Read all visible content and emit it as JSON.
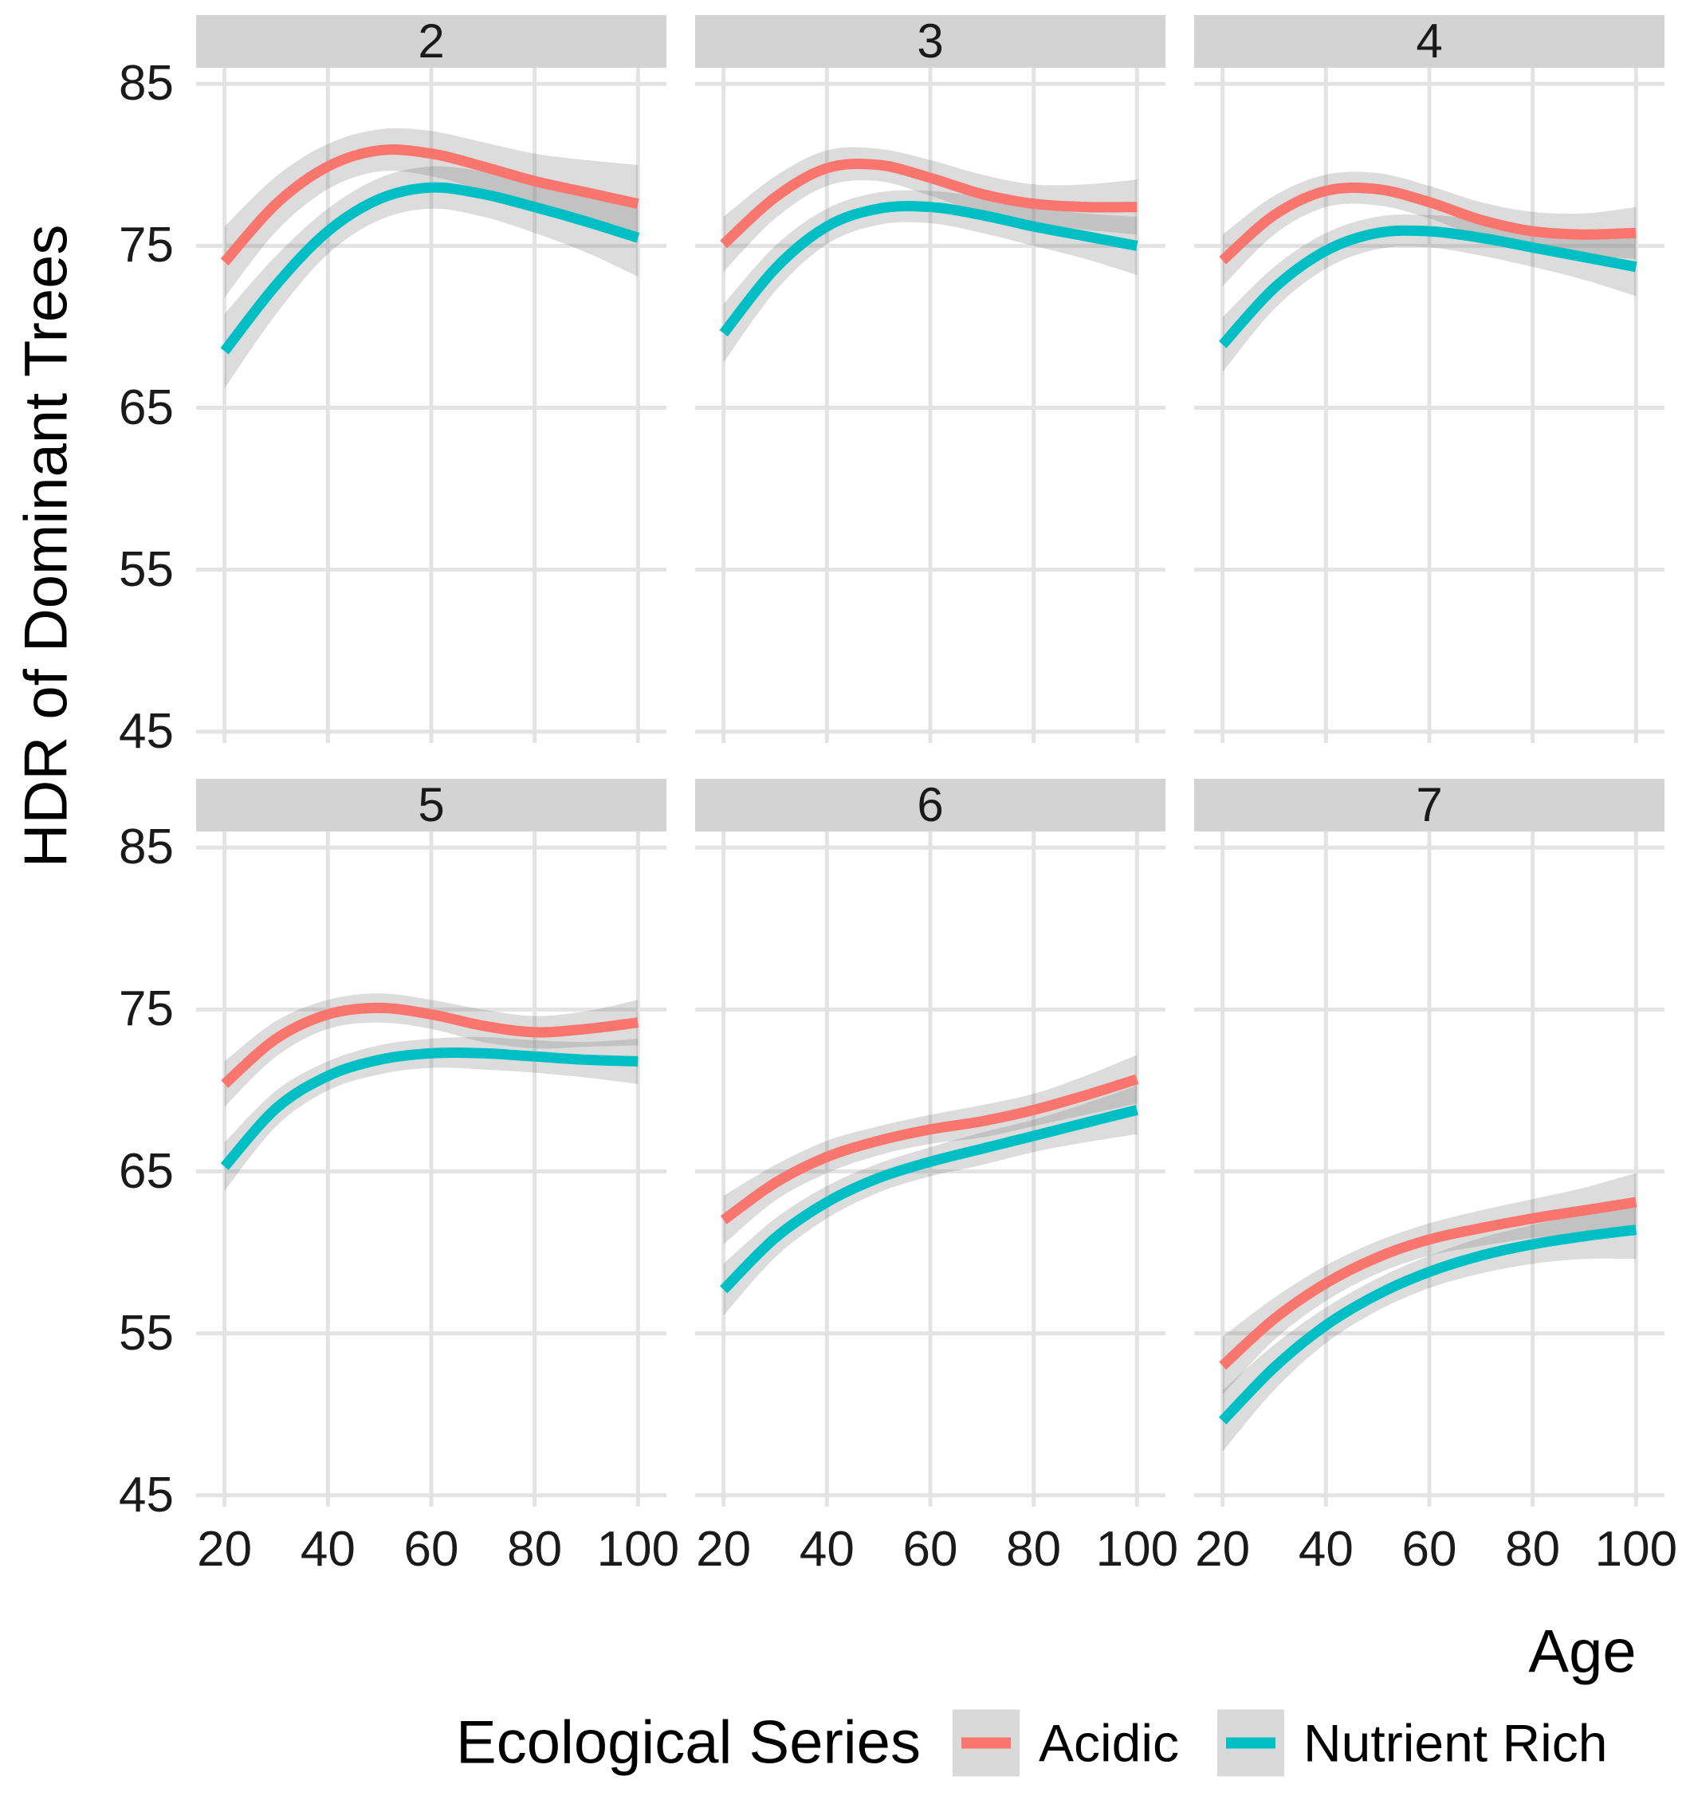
{
  "figure": {
    "background": "#ffffff"
  },
  "y_axis": {
    "title": "HDR of Dominant Trees",
    "ticks": [
      "85",
      "75",
      "65",
      "55",
      "45"
    ]
  },
  "x_axis": {
    "title": "Age",
    "ticks": [
      "20",
      "40",
      "60",
      "80",
      "100"
    ]
  },
  "legend": {
    "title": "Ecological Series",
    "items": [
      {
        "label": "Acidic",
        "color": "#F8766D"
      },
      {
        "label": "Nutrient Rich",
        "color": "#00BFC4"
      }
    ]
  },
  "colors": {
    "acidic": "#F8766D",
    "nutrient_rich": "#00BFC4",
    "strip_fill": "#D3D3D3",
    "legend_key_fill": "#D9D9D9",
    "gridline": "#E3E3E3",
    "ribbon": "rgba(127,127,127,0.27)",
    "text": "#1a1a1a"
  },
  "chart_data": {
    "type": "line",
    "title": "",
    "xlabel": "Age",
    "ylabel": "HDR of Dominant Trees",
    "x": [
      20,
      30,
      40,
      50,
      60,
      70,
      80,
      90,
      100
    ],
    "xticks": [
      20,
      40,
      60,
      80,
      100
    ],
    "yticks": [
      85,
      75,
      65,
      55,
      45
    ],
    "xlim": [
      14.5,
      105.5
    ],
    "ylim": [
      44.3,
      86.0
    ],
    "grid": true,
    "legend_position": "bottom",
    "ribbon": "confidence band (gray, half-widths in ci)",
    "facets": [
      {
        "label": "2",
        "series": [
          {
            "name": "Acidic",
            "values": [
              74.0,
              77.6,
              79.9,
              80.9,
              80.7,
              79.9,
              79.0,
              78.3,
              77.6
            ],
            "ci": [
              2.2,
              1.7,
              1.4,
              1.3,
              1.4,
              1.5,
              1.7,
              2.0,
              2.4
            ]
          },
          {
            "name": "Nutrient Rich",
            "values": [
              68.5,
              72.6,
              75.9,
              77.9,
              78.6,
              78.2,
              77.4,
              76.5,
              75.5
            ],
            "ci": [
              2.3,
              1.8,
              1.4,
              1.3,
              1.3,
              1.4,
              1.6,
              1.9,
              2.4
            ]
          }
        ]
      },
      {
        "label": "3",
        "series": [
          {
            "name": "Acidic",
            "values": [
              75.1,
              78.0,
              79.8,
              80.0,
              79.2,
              78.2,
              77.6,
              77.4,
              77.4
            ],
            "ci": [
              1.7,
              1.3,
              1.1,
              1.0,
              1.1,
              1.2,
              1.2,
              1.4,
              1.7
            ]
          },
          {
            "name": "Nutrient Rich",
            "values": [
              69.6,
              73.6,
              76.2,
              77.3,
              77.4,
              76.9,
              76.2,
              75.6,
              75.0
            ],
            "ci": [
              1.8,
              1.4,
              1.1,
              1.0,
              1.0,
              1.1,
              1.2,
              1.4,
              1.8
            ]
          }
        ]
      },
      {
        "label": "4",
        "series": [
          {
            "name": "Acidic",
            "values": [
              74.1,
              76.9,
              78.4,
              78.5,
              77.7,
              76.6,
              75.9,
              75.7,
              75.8
            ],
            "ci": [
              1.6,
              1.2,
              1.0,
              1.0,
              1.0,
              1.1,
              1.2,
              1.3,
              1.6
            ]
          },
          {
            "name": "Nutrient Rich",
            "values": [
              68.9,
              72.4,
              74.7,
              75.8,
              75.9,
              75.5,
              74.9,
              74.3,
              73.7
            ],
            "ci": [
              1.7,
              1.3,
              1.1,
              1.0,
              1.0,
              1.1,
              1.2,
              1.4,
              1.8
            ]
          }
        ]
      },
      {
        "label": "5",
        "series": [
          {
            "name": "Acidic",
            "values": [
              70.4,
              73.2,
              74.7,
              75.1,
              74.7,
              74.0,
              73.6,
              73.8,
              74.2
            ],
            "ci": [
              1.4,
              1.1,
              0.9,
              0.9,
              0.9,
              1.0,
              1.0,
              1.1,
              1.4
            ]
          },
          {
            "name": "Nutrient Rich",
            "values": [
              65.3,
              68.9,
              70.9,
              71.9,
              72.3,
              72.3,
              72.1,
              71.9,
              71.8
            ],
            "ci": [
              1.5,
              1.1,
              0.9,
              0.9,
              0.9,
              1.0,
              1.0,
              1.1,
              1.4
            ]
          }
        ]
      },
      {
        "label": "6",
        "series": [
          {
            "name": "Acidic",
            "values": [
              62.0,
              64.3,
              65.9,
              66.9,
              67.6,
              68.1,
              68.8,
              69.7,
              70.7
            ],
            "ci": [
              1.5,
              1.1,
              1.0,
              0.9,
              0.9,
              1.0,
              1.0,
              1.2,
              1.5
            ]
          },
          {
            "name": "Nutrient Rich",
            "values": [
              57.7,
              60.9,
              63.1,
              64.6,
              65.6,
              66.4,
              67.2,
              68.0,
              68.8
            ],
            "ci": [
              1.6,
              1.2,
              1.0,
              0.9,
              0.9,
              1.0,
              1.0,
              1.2,
              1.5
            ]
          }
        ]
      },
      {
        "label": "7",
        "series": [
          {
            "name": "Acidic",
            "values": [
              53.0,
              55.9,
              58.1,
              59.7,
              60.8,
              61.5,
              62.1,
              62.6,
              63.1
            ],
            "ci": [
              1.8,
              1.3,
              1.1,
              1.0,
              1.0,
              1.1,
              1.2,
              1.4,
              1.8
            ]
          },
          {
            "name": "Nutrient Rich",
            "values": [
              49.6,
              52.9,
              55.5,
              57.4,
              58.8,
              59.8,
              60.5,
              61.0,
              61.4
            ],
            "ci": [
              1.9,
              1.4,
              1.1,
              1.0,
              1.0,
              1.1,
              1.2,
              1.4,
              1.8
            ]
          }
        ]
      }
    ]
  }
}
